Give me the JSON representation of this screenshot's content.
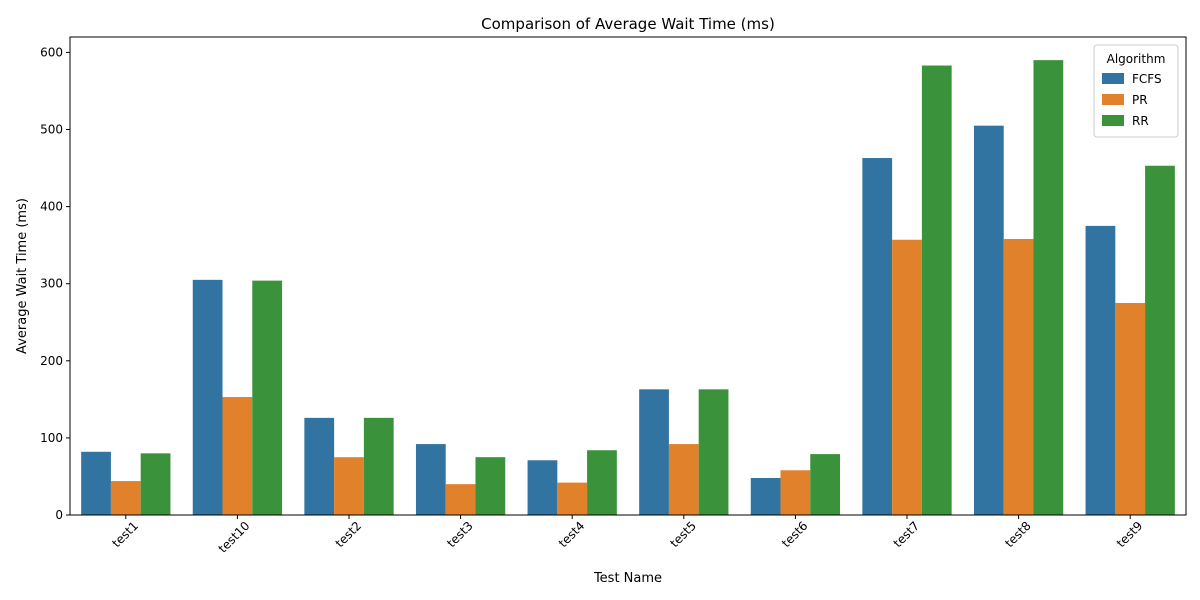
{
  "chart_data": {
    "type": "bar",
    "title": "Comparison of Average Wait Time (ms)",
    "xlabel": "Test Name",
    "ylabel": "Average Wait Time (ms)",
    "ylim": [
      0,
      620
    ],
    "yticks": [
      0,
      100,
      200,
      300,
      400,
      500,
      600
    ],
    "categories": [
      "test1",
      "test10",
      "test2",
      "test3",
      "test4",
      "test5",
      "test6",
      "test7",
      "test8",
      "test9"
    ],
    "series": [
      {
        "name": "FCFS",
        "color": "#3274a1",
        "values": [
          82,
          305,
          126,
          92,
          71,
          163,
          48,
          463,
          505,
          375
        ]
      },
      {
        "name": "PR",
        "color": "#e1812c",
        "values": [
          44,
          153,
          75,
          40,
          42,
          92,
          58,
          357,
          358,
          275
        ]
      },
      {
        "name": "RR",
        "color": "#3a923a",
        "values": [
          80,
          304,
          126,
          75,
          84,
          163,
          79,
          583,
          590,
          453
        ]
      }
    ],
    "legend": {
      "title": "Algorithm",
      "placement": "top-right"
    },
    "grid": false
  }
}
